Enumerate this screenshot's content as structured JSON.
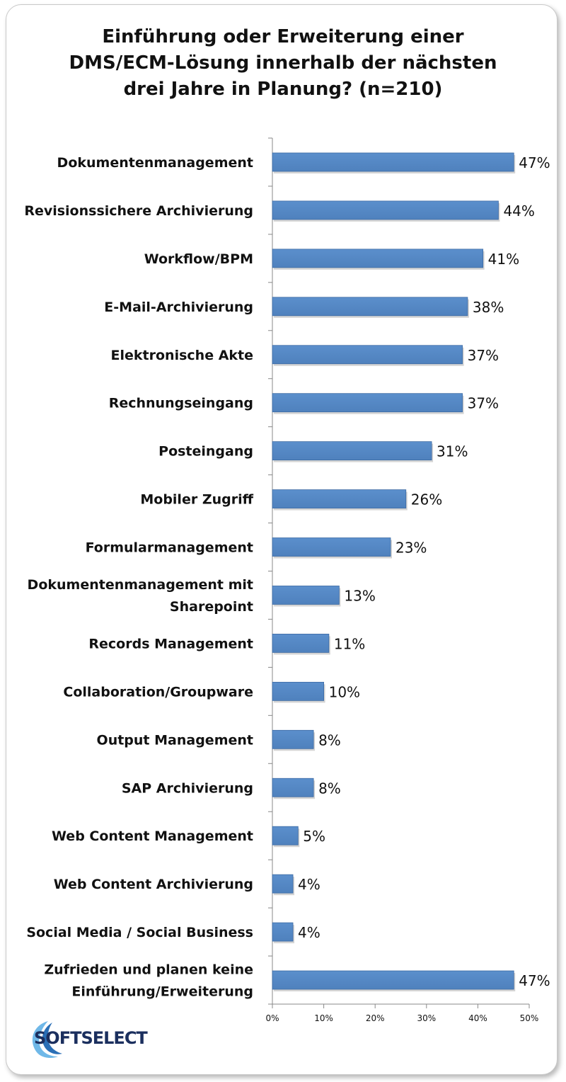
{
  "chart_data": {
    "type": "bar",
    "orientation": "horizontal",
    "title": [
      "Einführung oder Erweiterung einer",
      "DMS/ECM-Lösung innerhalb der nächsten",
      "drei Jahre in Planung? (n=210)"
    ],
    "categories": [
      [
        "Dokumentenmanagement"
      ],
      [
        "Revisionssichere Archivierung"
      ],
      [
        "Workflow/BPM"
      ],
      [
        "E-Mail-Archivierung"
      ],
      [
        "Elektronische Akte"
      ],
      [
        "Rechnungseingang"
      ],
      [
        "Posteingang"
      ],
      [
        "Mobiler Zugriff"
      ],
      [
        "Formularmanagement"
      ],
      [
        "Dokumentenmanagement mit",
        "Sharepoint"
      ],
      [
        "Records Management"
      ],
      [
        "Collaboration/Groupware"
      ],
      [
        "Output Management"
      ],
      [
        "SAP Archivierung"
      ],
      [
        "Web Content Management"
      ],
      [
        "Web Content Archivierung"
      ],
      [
        "Social Media / Social Business"
      ],
      [
        "Zufrieden und planen keine",
        "Einführung/Erweiterung"
      ]
    ],
    "values": [
      47,
      44,
      41,
      38,
      37,
      37,
      31,
      26,
      23,
      13,
      11,
      10,
      8,
      8,
      5,
      4,
      4,
      47
    ],
    "value_labels": [
      "47%",
      "44%",
      "41%",
      "38%",
      "37%",
      "37%",
      "31%",
      "26%",
      "23%",
      "13%",
      "11%",
      "10%",
      "8%",
      "8%",
      "5%",
      "4%",
      "4%",
      "47%"
    ],
    "xlim": [
      0,
      50
    ],
    "xticks": [
      0,
      10,
      20,
      30,
      40,
      50
    ],
    "xtick_labels": [
      "0%",
      "10%",
      "20%",
      "30%",
      "40%",
      "50%"
    ],
    "grid": false,
    "bar_color": "#4f81bd"
  },
  "logo": {
    "text": "SoftSelect",
    "display": "SOFTSELECT"
  }
}
